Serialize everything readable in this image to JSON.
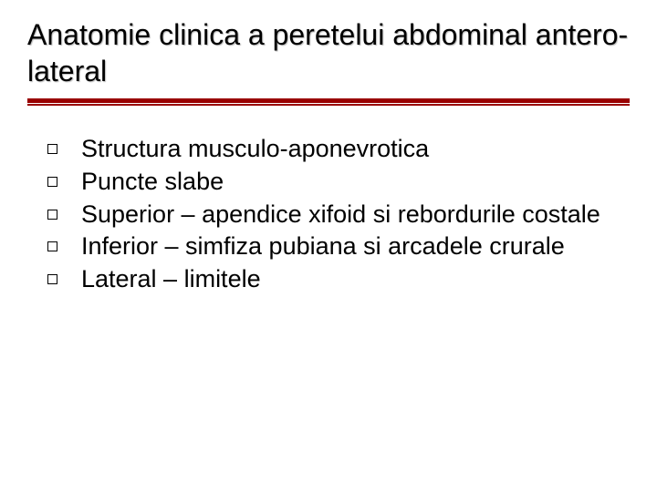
{
  "title": "Anatomie clinica a peretelui abdominal antero-lateral",
  "bullets": [
    {
      "text": "Structura musculo-aponevrotica"
    },
    {
      "text": "Puncte slabe"
    },
    {
      "text": "Superior – apendice xifoid si rebordurile costale"
    },
    {
      "text": "Inferior – simfiza pubiana si arcadele crurale"
    },
    {
      "text": "Lateral – limitele"
    }
  ],
  "colors": {
    "accent": "#990000",
    "text": "#000000",
    "background": "#ffffff",
    "title_shadow": "#bbbbbb"
  },
  "typography": {
    "title_fontsize": 32,
    "body_fontsize": 27,
    "font_family": "Verdana"
  },
  "bullet_style": {
    "shape": "hollow-square",
    "size": 11,
    "border_width": 1.5
  }
}
